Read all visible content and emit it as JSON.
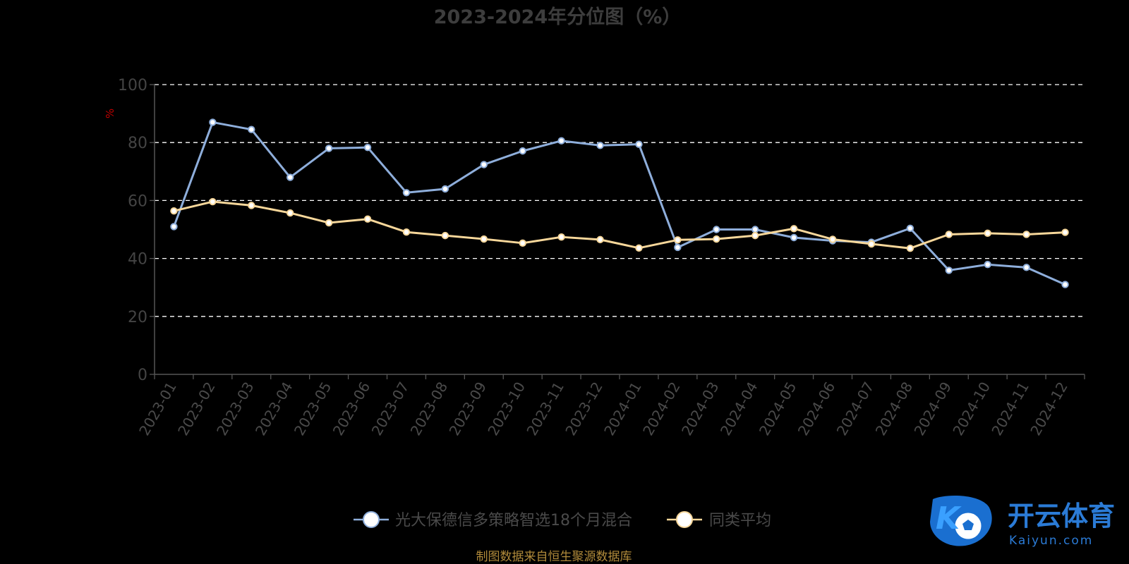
{
  "chart_data": {
    "type": "line",
    "title": "2023-2024年分位图（%）",
    "ylabel": "%",
    "ylim": [
      0,
      100
    ],
    "yticks": [
      0,
      20,
      40,
      60,
      80,
      100
    ],
    "categories": [
      "2023-01",
      "2023-02",
      "2023-03",
      "2023-04",
      "2023-05",
      "2023-06",
      "2023-07",
      "2023-08",
      "2023-09",
      "2023-10",
      "2023-11",
      "2023-12",
      "2024-01",
      "2024-02",
      "2024-03",
      "2024-04",
      "2024-05",
      "2024-06",
      "2024-07",
      "2024-08",
      "2024-09",
      "2024-10",
      "2024-11",
      "2024-12"
    ],
    "series": [
      {
        "name": "光大保德信多策略智选18个月混合",
        "color": "#8eaedb",
        "values": [
          51,
          87,
          84.5,
          68,
          78,
          78.3,
          62.7,
          64,
          72.4,
          77.1,
          80.6,
          79,
          79.4,
          43.8,
          50,
          50,
          47.2,
          46.1,
          45.6,
          50.4,
          35.9,
          37.9,
          36.9,
          31
        ]
      },
      {
        "name": "同类平均",
        "color": "#f7d79a",
        "values": [
          56.4,
          59.6,
          58.3,
          55.7,
          52.3,
          53.6,
          49.1,
          47.9,
          46.7,
          45.3,
          47.4,
          46.5,
          43.6,
          46.4,
          46.7,
          47.9,
          50.3,
          46.6,
          45,
          43.5,
          48.3,
          48.7,
          48.3,
          49
        ]
      }
    ],
    "grid": true,
    "legend": "bottom-center"
  },
  "footer": {
    "source": "制图数据来自恒生聚源数据库"
  },
  "watermark": {
    "brand": "开云体育",
    "url": "Kaiyun.com",
    "logo_letter": "K"
  }
}
